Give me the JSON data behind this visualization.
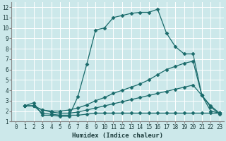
{
  "xlabel": "Humidex (Indice chaleur)",
  "bg_color": "#cce8ea",
  "grid_color": "#ffffff",
  "line_color": "#1a6b6b",
  "xlim": [
    -0.5,
    23.5
  ],
  "ylim": [
    1,
    12.5
  ],
  "xticks": [
    0,
    1,
    2,
    3,
    4,
    5,
    6,
    7,
    8,
    9,
    10,
    11,
    12,
    13,
    14,
    15,
    16,
    17,
    18,
    19,
    20,
    21,
    22,
    23
  ],
  "yticks": [
    1,
    2,
    3,
    4,
    5,
    6,
    7,
    8,
    9,
    10,
    11,
    12
  ],
  "line1_x": [
    1,
    2,
    3,
    4,
    5,
    6,
    7,
    8,
    9,
    10,
    11,
    12,
    13,
    14,
    15,
    16,
    17,
    18,
    19,
    20,
    21,
    22,
    23
  ],
  "line1_y": [
    2.5,
    2.8,
    1.6,
    1.6,
    1.5,
    1.5,
    3.4,
    6.5,
    9.8,
    10.0,
    11.0,
    11.2,
    11.4,
    11.5,
    11.5,
    11.8,
    9.5,
    8.2,
    7.5,
    7.5,
    3.5,
    2.4,
    1.7
  ],
  "line2_x": [
    1,
    2,
    3,
    4,
    5,
    6,
    7,
    8,
    9,
    10,
    11,
    12,
    13,
    14,
    15,
    16,
    17,
    18,
    19,
    20,
    21,
    22,
    23
  ],
  "line2_y": [
    2.5,
    2.5,
    2.1,
    2.0,
    2.0,
    2.1,
    2.3,
    2.6,
    3.0,
    3.3,
    3.7,
    4.0,
    4.3,
    4.6,
    5.0,
    5.5,
    6.0,
    6.3,
    6.6,
    6.8,
    3.5,
    2.0,
    1.8
  ],
  "line3_x": [
    1,
    2,
    3,
    4,
    5,
    6,
    7,
    8,
    9,
    10,
    11,
    12,
    13,
    14,
    15,
    16,
    17,
    18,
    19,
    20,
    21,
    22,
    23
  ],
  "line3_y": [
    2.5,
    2.5,
    2.1,
    1.9,
    1.8,
    1.8,
    1.9,
    2.1,
    2.3,
    2.5,
    2.7,
    2.9,
    3.1,
    3.3,
    3.5,
    3.7,
    3.9,
    4.1,
    4.3,
    4.5,
    3.5,
    2.5,
    1.8
  ],
  "line4_x": [
    1,
    2,
    3,
    4,
    5,
    6,
    7,
    8,
    9,
    10,
    11,
    12,
    13,
    14,
    15,
    16,
    17,
    18,
    19,
    20,
    21,
    22,
    23
  ],
  "line4_y": [
    2.5,
    2.5,
    1.8,
    1.7,
    1.6,
    1.6,
    1.6,
    1.7,
    1.8,
    1.8,
    1.8,
    1.8,
    1.8,
    1.8,
    1.8,
    1.8,
    1.8,
    1.8,
    1.8,
    1.8,
    1.8,
    1.8,
    1.8
  ],
  "markersize": 2.5,
  "linewidth": 0.9
}
